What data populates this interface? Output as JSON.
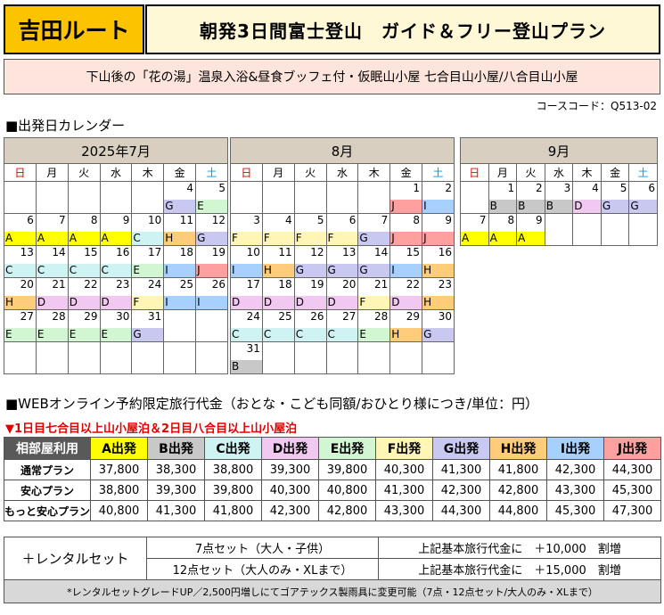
{
  "header": {
    "route": "吉田ルート",
    "title": "朝発3日間富士登山　ガイド＆フリー登山プラン",
    "subtitle": "下山後の「花の湯」温泉入浴&昼食ブッフェ付・仮眠山小屋 七合目山小屋/八合目山小屋",
    "course_code": "コースコード：Q513-02"
  },
  "calendar_title": "■出発日カレンダー",
  "weekdays": [
    "日",
    "月",
    "火",
    "水",
    "木",
    "金",
    "土"
  ],
  "calendars": [
    {
      "title": "2025年7月",
      "weeks": [
        [
          null,
          null,
          null,
          null,
          null,
          {
            "d": "4",
            "g": "G"
          },
          {
            "d": "5",
            "g": "E"
          }
        ],
        [
          {
            "d": "6",
            "g": "A"
          },
          {
            "d": "7",
            "g": "A"
          },
          {
            "d": "8",
            "g": "A"
          },
          {
            "d": "9",
            "g": "A"
          },
          {
            "d": "10",
            "g": "C"
          },
          {
            "d": "11",
            "g": "H"
          },
          {
            "d": "12",
            "g": "G"
          }
        ],
        [
          {
            "d": "13",
            "g": "C"
          },
          {
            "d": "14",
            "g": "C"
          },
          {
            "d": "15",
            "g": "C"
          },
          {
            "d": "16",
            "g": "C"
          },
          {
            "d": "17",
            "g": "E"
          },
          {
            "d": "18",
            "g": "I"
          },
          {
            "d": "19",
            "g": "J"
          }
        ],
        [
          {
            "d": "20",
            "g": "H"
          },
          {
            "d": "21",
            "g": "D"
          },
          {
            "d": "22",
            "g": "D"
          },
          {
            "d": "23",
            "g": "D"
          },
          {
            "d": "24",
            "g": "F"
          },
          {
            "d": "25",
            "g": "I"
          },
          {
            "d": "26",
            "g": "I"
          }
        ],
        [
          {
            "d": "27",
            "g": "E"
          },
          {
            "d": "28",
            "g": "E"
          },
          {
            "d": "29",
            "g": "E"
          },
          {
            "d": "30",
            "g": "E"
          },
          {
            "d": "31",
            "g": "G"
          },
          null,
          null
        ],
        [
          null,
          null,
          null,
          null,
          null,
          null,
          null
        ]
      ]
    },
    {
      "title": "8月",
      "weeks": [
        [
          null,
          null,
          null,
          null,
          null,
          {
            "d": "1",
            "g": "J"
          },
          {
            "d": "2",
            "g": "I"
          }
        ],
        [
          {
            "d": "3",
            "g": "F"
          },
          {
            "d": "4",
            "g": "F"
          },
          {
            "d": "5",
            "g": "F"
          },
          {
            "d": "6",
            "g": "F"
          },
          {
            "d": "7",
            "g": "G"
          },
          {
            "d": "8",
            "g": "J"
          },
          {
            "d": "9",
            "g": "J"
          }
        ],
        [
          {
            "d": "10",
            "g": "I"
          },
          {
            "d": "11",
            "g": "H"
          },
          {
            "d": "12",
            "g": "G"
          },
          {
            "d": "13",
            "g": "G"
          },
          {
            "d": "14",
            "g": "G"
          },
          {
            "d": "15",
            "g": "I"
          },
          {
            "d": "16",
            "g": "H"
          }
        ],
        [
          {
            "d": "17",
            "g": "D"
          },
          {
            "d": "18",
            "g": "D"
          },
          {
            "d": "19",
            "g": "D"
          },
          {
            "d": "20",
            "g": "D"
          },
          {
            "d": "21",
            "g": "F"
          },
          {
            "d": "22",
            "g": "D"
          },
          {
            "d": "23",
            "g": "H"
          }
        ],
        [
          {
            "d": "24",
            "g": "C"
          },
          {
            "d": "25",
            "g": "C"
          },
          {
            "d": "26",
            "g": "C"
          },
          {
            "d": "27",
            "g": "C"
          },
          {
            "d": "28",
            "g": "E"
          },
          {
            "d": "29",
            "g": "H"
          },
          {
            "d": "30",
            "g": "G"
          }
        ],
        [
          {
            "d": "31",
            "g": "B"
          },
          null,
          null,
          null,
          null,
          null,
          null
        ]
      ]
    },
    {
      "title": "9月",
      "weeks": [
        [
          null,
          {
            "d": "1",
            "g": "B"
          },
          {
            "d": "2",
            "g": "B"
          },
          {
            "d": "3",
            "g": "B"
          },
          {
            "d": "4",
            "g": "D"
          },
          {
            "d": "5",
            "g": "G"
          },
          {
            "d": "6",
            "g": "G"
          }
        ],
        [
          {
            "d": "7",
            "g": "A"
          },
          {
            "d": "8",
            "g": "A"
          },
          {
            "d": "9",
            "g": "A"
          },
          null,
          null,
          null,
          null
        ]
      ]
    }
  ],
  "price_title": "■WEBオンライン予約限定旅行代金（おとな・こども同額/おひとり様につき/単位：円）",
  "price_note": "▼1日目七合目以上山小屋泊＆2日目八合目以上山小屋泊",
  "price_table": {
    "corner": "相部屋利用",
    "headers": [
      "A出発",
      "B出発",
      "C出発",
      "D出発",
      "E出発",
      "F出発",
      "G出発",
      "H出発",
      "I出発",
      "J出発"
    ],
    "rows": [
      {
        "label": "通常プラン",
        "values": [
          "37,800",
          "38,300",
          "38,800",
          "39,300",
          "39,800",
          "40,300",
          "41,300",
          "41,800",
          "42,300",
          "44,300"
        ]
      },
      {
        "label": "安心プラン",
        "values": [
          "38,800",
          "39,300",
          "39,800",
          "40,300",
          "40,800",
          "41,300",
          "42,300",
          "42,800",
          "43,300",
          "45,300"
        ]
      },
      {
        "label": "もっと安心プラン",
        "values": [
          "40,800",
          "41,300",
          "41,800",
          "42,300",
          "42,800",
          "43,300",
          "44,300",
          "44,800",
          "45,300",
          "47,300"
        ]
      }
    ]
  },
  "rental": {
    "label": "＋レンタルセット",
    "rows": [
      {
        "set": "7点セット（大人・子供）",
        "text": "上記基本旅行代金に　＋10,000　割増"
      },
      {
        "set": "12点セット（大人のみ・XLまで）",
        "text": "上記基本旅行代金に　＋15,000　割増"
      }
    ],
    "note": "*レンタルセットグレードUP／2,500円増しにてゴアテックス製雨具に変更可能（7点・12点セット/大人のみ・XLまで）"
  },
  "colors": {
    "A": "#ffff00",
    "B": "#c8c8c8",
    "C": "#cff2f2",
    "D": "#f0c8f0",
    "E": "#d2f5d2",
    "F": "#fff5b4",
    "G": "#c8c8f0",
    "H": "#ffcc7a",
    "I": "#a8d0ff",
    "J": "#ffa0a0"
  }
}
